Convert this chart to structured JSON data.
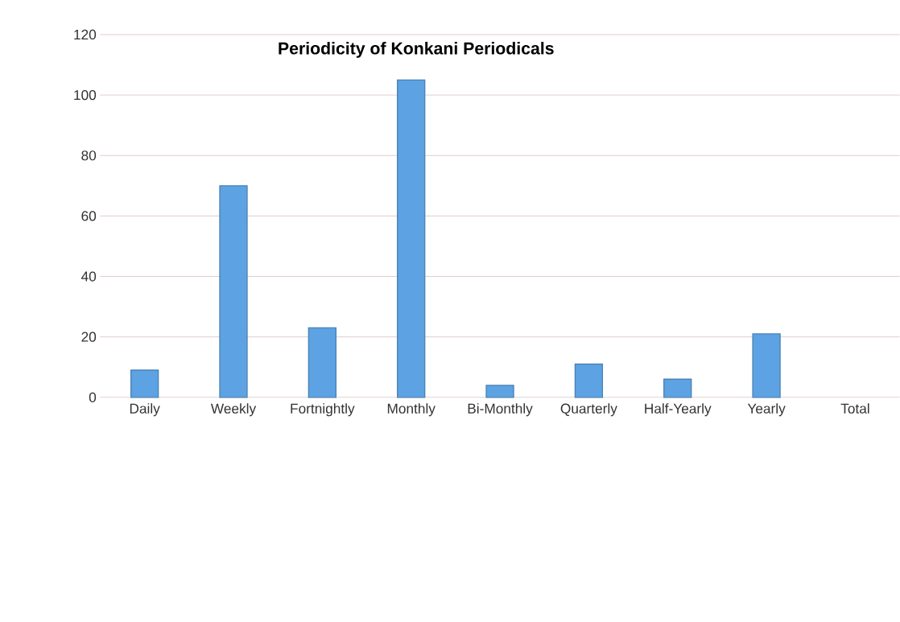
{
  "chart_data": {
    "type": "bar",
    "title": "Periodicity of Konkani Periodicals",
    "categories": [
      "Daily",
      "Weekly",
      "Fortnightly",
      "Monthly",
      "Bi-Monthly",
      "Quarterly",
      "Half-Yearly",
      "Yearly",
      "Total"
    ],
    "values": [
      9,
      70,
      23,
      105,
      4,
      11,
      6,
      21,
      null
    ],
    "color": "#5da2e2",
    "ylim": [
      0,
      120
    ],
    "yticks": [
      0,
      20,
      40,
      60,
      80,
      100,
      120
    ],
    "grid": "y"
  }
}
